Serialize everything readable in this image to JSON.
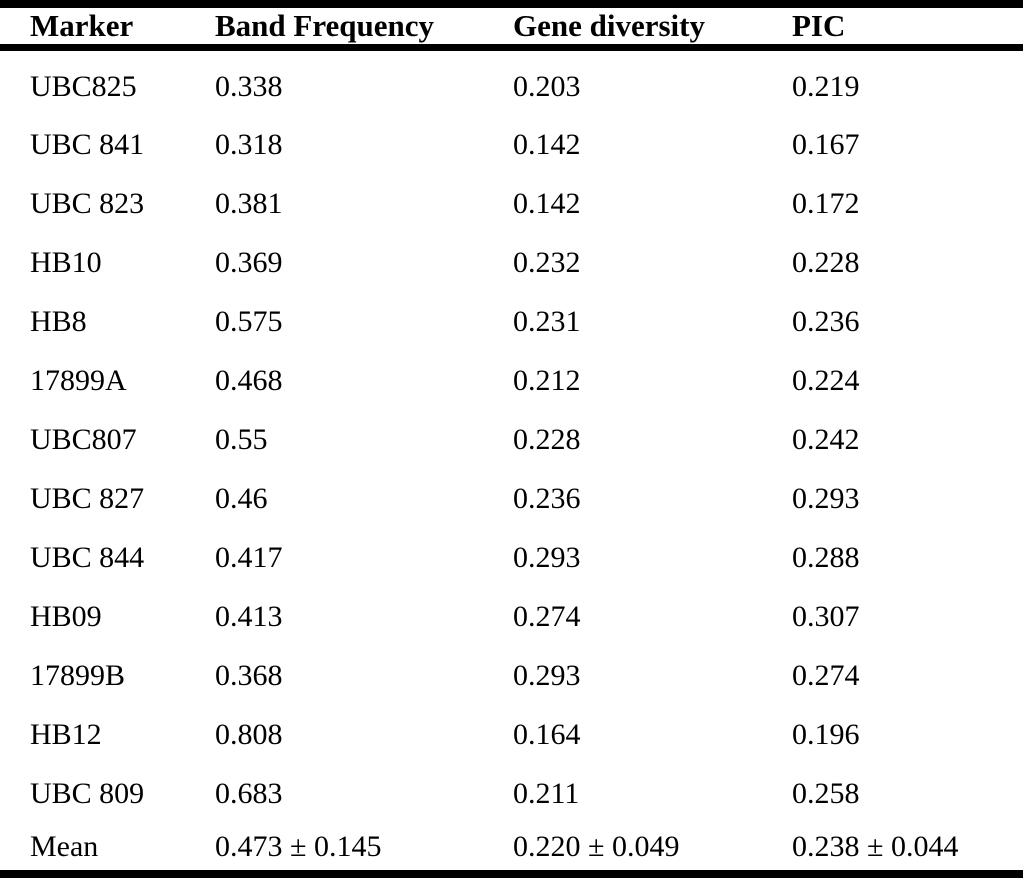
{
  "colors": {
    "background": "#ffffff",
    "text": "#000000",
    "rule": "#000000"
  },
  "table": {
    "columns": [
      "Marker",
      "Band Frequency",
      "Gene diversity",
      "PIC"
    ],
    "rows": [
      [
        "UBC825",
        "0.338",
        "0.203",
        "0.219"
      ],
      [
        "UBC 841",
        "0.318",
        "0.142",
        "0.167"
      ],
      [
        "UBC 823",
        "0.381",
        "0.142",
        "0.172"
      ],
      [
        "HB10",
        "0.369",
        "0.232",
        "0.228"
      ],
      [
        "HB8",
        "0.575",
        "0.231",
        "0.236"
      ],
      [
        "17899A",
        "0.468",
        "0.212",
        "0.224"
      ],
      [
        "UBC807",
        "0.55",
        "0.228",
        "0.242"
      ],
      [
        "UBC 827",
        "0.46",
        "0.236",
        "0.293"
      ],
      [
        "UBC 844",
        "0.417",
        "0.293",
        "0.288"
      ],
      [
        "HB09",
        "0.413",
        "0.274",
        "0.307"
      ],
      [
        "17899B",
        "0.368",
        "0.293",
        "0.274"
      ],
      [
        "HB12",
        "0.808",
        "0.164",
        "0.196"
      ],
      [
        "UBC 809",
        "0.683",
        "0.211",
        "0.258"
      ],
      [
        "Mean",
        "0.473 ± 0.145",
        "0.220 ± 0.049",
        "0.238 ± 0.044"
      ]
    ]
  }
}
